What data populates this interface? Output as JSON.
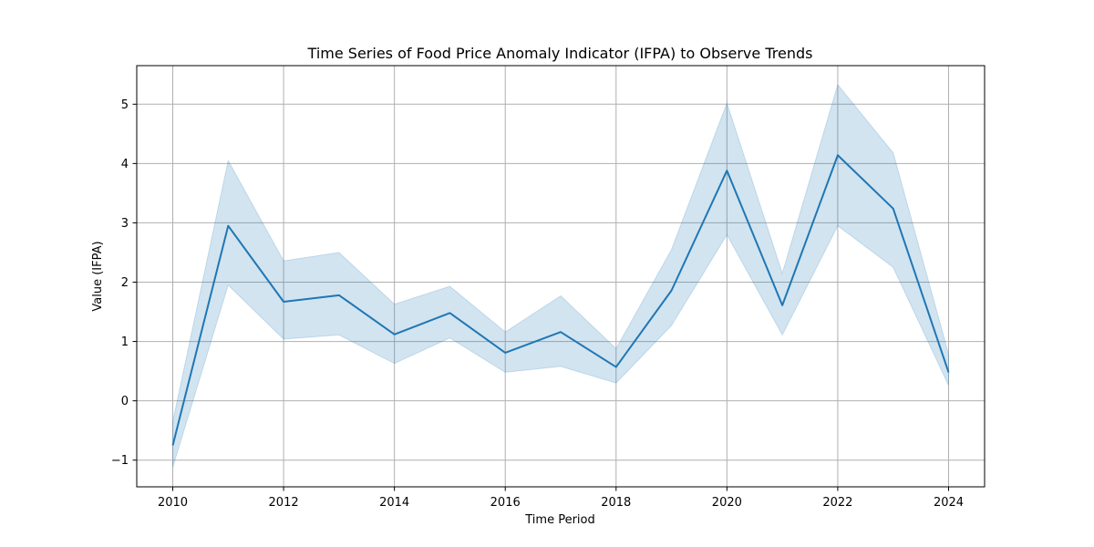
{
  "chart_data": {
    "type": "line",
    "title": "Time Series of Food Price Anomaly Indicator (IFPA) to Observe Trends",
    "xlabel": "Time Period",
    "ylabel": "Value (IFPA)",
    "xlim": [
      2009.35,
      2024.65
    ],
    "ylim": [
      -1.45,
      5.65
    ],
    "xticks": [
      2010,
      2012,
      2014,
      2016,
      2018,
      2020,
      2022,
      2024
    ],
    "xtick_labels": [
      "2010",
      "2012",
      "2014",
      "2016",
      "2018",
      "2020",
      "2022",
      "2024"
    ],
    "yticks": [
      -1,
      0,
      1,
      2,
      3,
      4,
      5
    ],
    "ytick_labels": [
      "−1",
      "0",
      "1",
      "2",
      "3",
      "4",
      "5"
    ],
    "grid": true,
    "series": [
      {
        "color": "#1f77b4",
        "band_color": "#1f77b4",
        "x": [
          2010,
          2011,
          2012,
          2013,
          2014,
          2015,
          2016,
          2017,
          2018,
          2019,
          2020,
          2021,
          2022,
          2023,
          2024
        ],
        "y": [
          -0.75,
          2.95,
          1.67,
          1.78,
          1.12,
          1.48,
          0.81,
          1.16,
          0.57,
          1.86,
          3.88,
          1.61,
          4.14,
          3.24,
          0.48
        ],
        "lower": [
          -1.12,
          1.95,
          1.04,
          1.11,
          0.63,
          1.06,
          0.48,
          0.58,
          0.3,
          1.27,
          2.8,
          1.11,
          2.95,
          2.25,
          0.26
        ],
        "upper": [
          -0.35,
          4.05,
          2.36,
          2.5,
          1.63,
          1.93,
          1.16,
          1.77,
          0.88,
          2.55,
          5.02,
          2.15,
          5.33,
          4.18,
          0.79
        ]
      }
    ]
  }
}
